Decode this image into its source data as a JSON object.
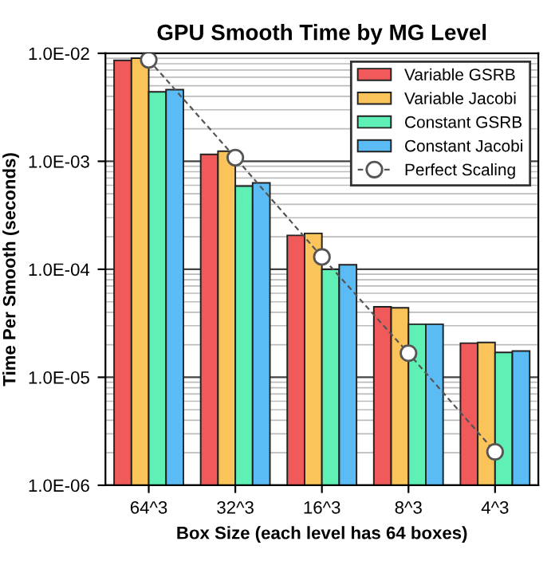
{
  "chart_data": {
    "type": "bar",
    "title": "GPU Smooth Time by MG Level",
    "xlabel": "Box Size (each level has 64 boxes)",
    "ylabel": "Time Per Smooth (seconds)",
    "categories": [
      "64^3",
      "32^3",
      "16^3",
      "8^3",
      "4^3"
    ],
    "log": true,
    "ylim": [
      1e-06,
      0.01
    ],
    "yticks": [
      {
        "value": 1e-06,
        "label": "1.0E-06"
      },
      {
        "value": 1e-05,
        "label": "1.0E-05"
      },
      {
        "value": 0.0001,
        "label": "1.0E-04"
      },
      {
        "value": 0.001,
        "label": "1.0E-03"
      },
      {
        "value": 0.01,
        "label": "1.0E-02"
      }
    ],
    "grid": "y",
    "legend": "top right",
    "series": [
      {
        "name": "Variable GSRB",
        "color": "#f05a5a",
        "values": [
          0.0086,
          0.00116,
          0.000206,
          4.5e-05,
          2.07e-05
        ]
      },
      {
        "name": "Variable Jacobi",
        "color": "#fbc45a",
        "values": [
          0.009,
          0.00124,
          0.000215,
          4.4e-05,
          2.1e-05
        ]
      },
      {
        "name": "Constant GSRB",
        "color": "#5ef0b4",
        "values": [
          0.0044,
          0.00059,
          0.0001,
          3.1e-05,
          1.7e-05
        ]
      },
      {
        "name": "Constant Jacobi",
        "color": "#5bbcf5",
        "values": [
          0.0046,
          0.00063,
          0.00011,
          3.1e-05,
          1.75e-05
        ]
      },
      {
        "name": "Perfect Scaling",
        "type": "line",
        "color": "#555555",
        "marker": "circle",
        "line_style": "dashed",
        "values": [
          0.0087,
          0.00108,
          0.00013,
          1.67e-05,
          2.04e-06
        ]
      }
    ]
  }
}
